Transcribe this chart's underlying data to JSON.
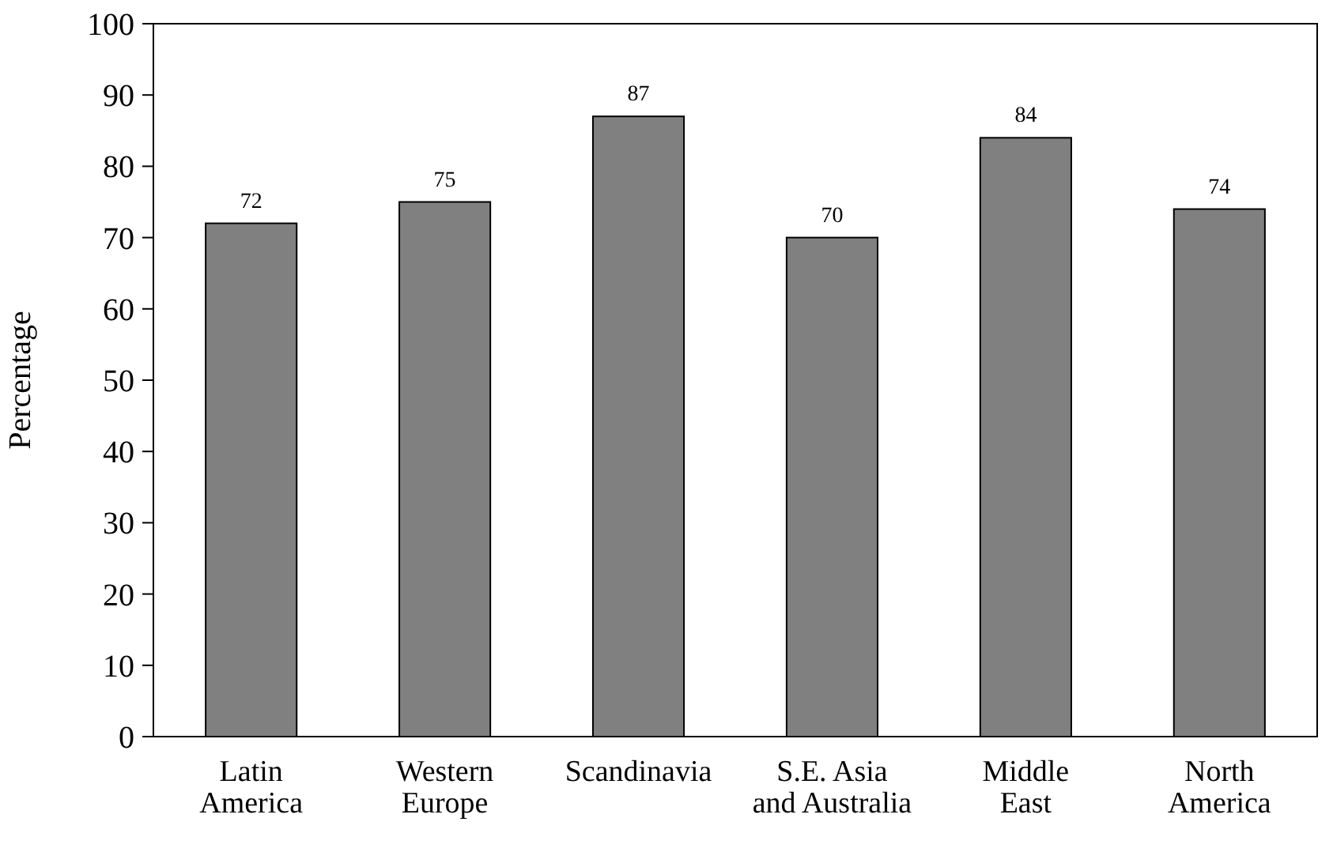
{
  "chart_data": {
    "type": "bar",
    "ylabel": "Percentage",
    "categories": [
      "Latin\nAmerica",
      "Western\nEurope",
      "Scandinavia",
      "S.E. Asia\nand Australia",
      "Middle\nEast",
      "North\nAmerica"
    ],
    "values": [
      72,
      75,
      87,
      70,
      84,
      74
    ],
    "color": "#808080",
    "data_labels": true,
    "ylim": [
      0,
      100
    ],
    "yticks": [
      0,
      10,
      20,
      30,
      40,
      50,
      60,
      70,
      80,
      90,
      100
    ],
    "grid": false
  }
}
